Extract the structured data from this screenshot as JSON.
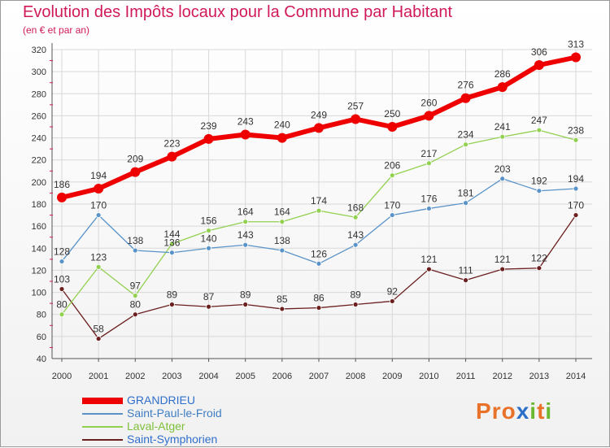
{
  "header": {
    "title": "Evolution des Impôts locaux pour la Commune par Habitant",
    "subtitle": "(en € et par an)"
  },
  "logo": {
    "text": "Proxiti",
    "letters": [
      "P",
      "r",
      "o",
      "x",
      "i",
      "t",
      "i"
    ],
    "colors": [
      "#e8722a",
      "#e8722a",
      "#e8722a",
      "#2c6fc9",
      "#6ab82f",
      "#e8722a",
      "#6ab82f"
    ]
  },
  "chart_data": {
    "type": "line",
    "title": "Evolution des Impôts locaux pour la Commune par Habitant",
    "subtitle": "(en € et par an)",
    "xlabel": "",
    "ylabel": "",
    "ylim": [
      40,
      320
    ],
    "yticks": [
      40,
      60,
      80,
      100,
      120,
      140,
      160,
      180,
      200,
      220,
      240,
      260,
      280,
      300,
      320
    ],
    "grid": true,
    "legend": "bottom-left",
    "categories": [
      "2000",
      "2001",
      "2002",
      "2003",
      "2004",
      "2005",
      "2006",
      "2007",
      "2008",
      "2009",
      "2010",
      "2011",
      "2012",
      "2013",
      "2014"
    ],
    "series": [
      {
        "name": "GRANDRIEU",
        "color": "#ee0000",
        "labelColor": "#2f6fcc",
        "values": [
          186,
          194,
          209,
          223,
          239,
          243,
          240,
          249,
          257,
          250,
          260,
          276,
          286,
          306,
          313
        ]
      },
      {
        "name": "Saint-Paul-le-Froid",
        "color": "#5a93c8",
        "labelColor": "#3f7ec2",
        "values": [
          128,
          170,
          138,
          136,
          140,
          143,
          138,
          126,
          143,
          170,
          176,
          181,
          203,
          192,
          194
        ]
      },
      {
        "name": "Laval-Atger",
        "color": "#92d050",
        "labelColor": "#7fc03a",
        "values": [
          80,
          123,
          97,
          144,
          156,
          164,
          164,
          174,
          168,
          206,
          217,
          234,
          241,
          247,
          238
        ]
      },
      {
        "name": "Saint-Symphorien",
        "color": "#6b1f1f",
        "labelColor": "#2f6fcc",
        "values": [
          103,
          58,
          80,
          89,
          87,
          89,
          85,
          86,
          89,
          92,
          121,
          111,
          121,
          122,
          170
        ]
      }
    ]
  }
}
